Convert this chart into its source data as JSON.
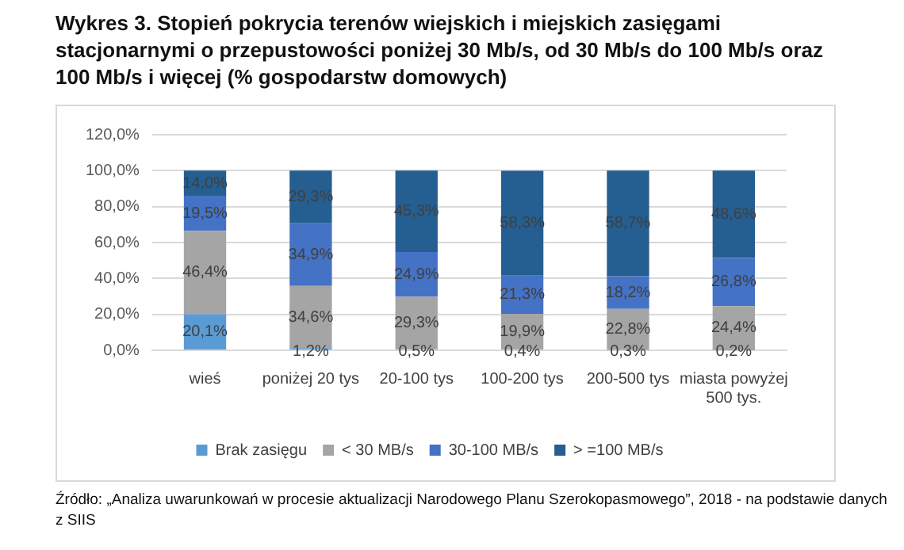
{
  "chart_data": {
    "type": "bar",
    "stacked": true,
    "title": "Wykres 3. Stopień pokrycia terenów wiejskich i miejskich zasięgami stacjonarnymi o przepustowości poniżej 30 Mb/s, od 30 Mb/s do 100 Mb/s oraz 100 Mb/s i więcej (% gospodarstw domowych)",
    "categories": [
      "wieś",
      "poniżej 20 tys",
      "20-100 tys",
      "100-200 tys",
      "200-500 tys",
      "miasta powyżej 500 tys."
    ],
    "series": [
      {
        "name": "Brak zasięgu",
        "color": "#5b9bd5",
        "values": [
          20.1,
          1.2,
          0.5,
          0.4,
          0.3,
          0.2
        ],
        "value_labels": [
          "20,1%",
          "1,2%",
          "0,5%",
          "0,4%",
          "0,3%",
          "0,2%"
        ]
      },
      {
        "name": "< 30 MB/s",
        "color": "#a5a5a5",
        "values": [
          46.4,
          34.6,
          29.3,
          19.9,
          22.8,
          24.4
        ],
        "value_labels": [
          "46,4%",
          "34,6%",
          "29,3%",
          "19,9%",
          "22,8%",
          "24,4%"
        ]
      },
      {
        "name": "30-100 MB/s",
        "color": "#4472c4",
        "values": [
          19.5,
          34.9,
          24.9,
          21.3,
          18.2,
          26.8
        ],
        "value_labels": [
          "19,5%",
          "34,9%",
          "24,9%",
          "21,3%",
          "18,2%",
          "26,8%"
        ]
      },
      {
        "name": "> =100 MB/s",
        "color": "#255e91",
        "values": [
          14.0,
          29.3,
          45.3,
          58.3,
          58.7,
          48.6
        ],
        "value_labels": [
          "14,0%",
          "29,3%",
          "45,3%",
          "58,3%",
          "58,7%",
          "48,6%"
        ]
      }
    ],
    "ylim": [
      0,
      120
    ],
    "yticks": [
      {
        "value": 0,
        "label": "0,0%"
      },
      {
        "value": 20,
        "label": "20,0%"
      },
      {
        "value": 40,
        "label": "40,0%"
      },
      {
        "value": 60,
        "label": "60,0%"
      },
      {
        "value": 80,
        "label": "80,0%"
      },
      {
        "value": 100,
        "label": "100,0%"
      },
      {
        "value": 120,
        "label": "120,0%"
      }
    ],
    "grid": "y",
    "legend": "bottom",
    "annotations": [
      "Źródło: „Analiza uwarunkowań w procesie aktualizacji Narodowego Planu Szerokopasmowego”, 2018 - na podstawie danych z SIIS"
    ]
  }
}
